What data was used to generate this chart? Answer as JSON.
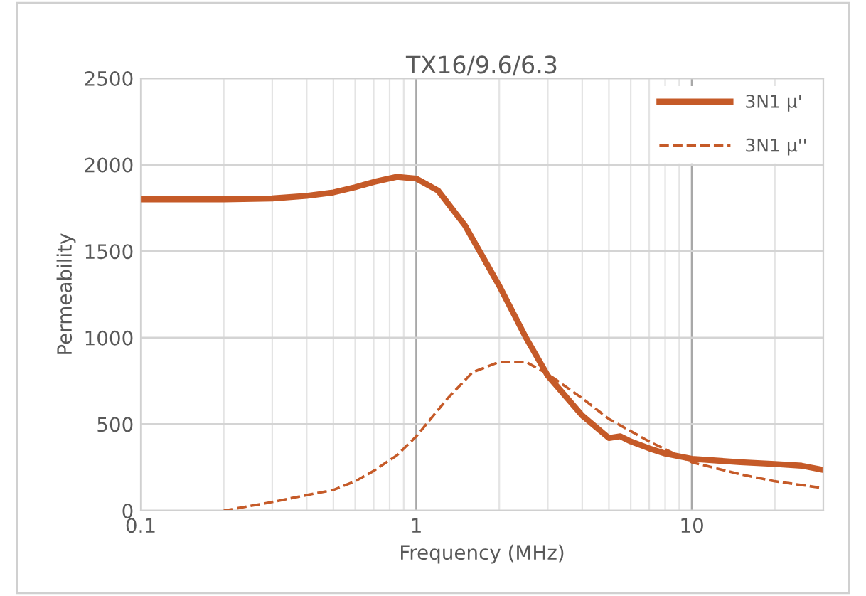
{
  "chart_data": {
    "type": "line",
    "title": "TX16/9.6/6.3",
    "xlabel": "Frequency (MHz)",
    "ylabel": "Permeability",
    "log": "x",
    "xlim": [
      0.1,
      30
    ],
    "xticks": [
      0.1,
      1,
      10
    ],
    "ylim": [
      0,
      2500
    ],
    "yticks": [
      0,
      500,
      1000,
      1500,
      2000,
      2500
    ],
    "grid": true,
    "legend": "top right",
    "series": [
      {
        "name": "3N1 μ'",
        "color": "#c55a28",
        "line_style": "solid",
        "x": [
          0.1,
          0.2,
          0.3,
          0.4,
          0.5,
          0.6,
          0.7,
          0.85,
          1,
          1.2,
          1.5,
          2,
          2.5,
          3,
          4,
          5,
          5.5,
          6,
          7,
          8,
          10,
          15,
          20,
          25,
          30
        ],
        "values": [
          1800,
          1800,
          1805,
          1820,
          1840,
          1870,
          1900,
          1930,
          1920,
          1850,
          1650,
          1300,
          1000,
          780,
          550,
          420,
          430,
          400,
          360,
          330,
          300,
          280,
          270,
          260,
          235
        ]
      },
      {
        "name": "3N1 μ''",
        "color": "#c55a28",
        "line_style": "dashed",
        "x": [
          0.2,
          0.3,
          0.4,
          0.5,
          0.6,
          0.7,
          0.85,
          1,
          1.3,
          1.6,
          2,
          2.5,
          3,
          4,
          5,
          7,
          10,
          15,
          20,
          30
        ],
        "values": [
          0,
          50,
          90,
          120,
          170,
          230,
          320,
          430,
          650,
          800,
          860,
          860,
          790,
          650,
          530,
          400,
          280,
          210,
          170,
          130
        ]
      }
    ]
  }
}
